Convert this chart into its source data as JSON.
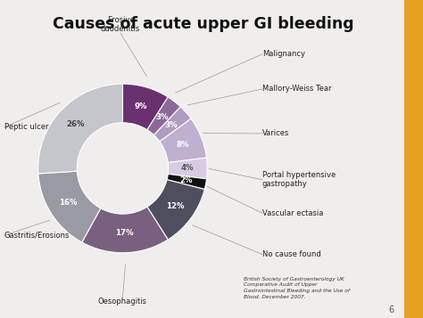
{
  "title": "Causes of acute upper GI bleeding",
  "background_color": "#f0eeec",
  "slices": [
    {
      "label": "Erosive\nduodenitis",
      "value": 9,
      "color": "#6b3070",
      "pct_label": "9%",
      "pct_color": "white"
    },
    {
      "label": "Malignancy",
      "value": 3,
      "color": "#8c6898",
      "pct_label": "3%",
      "pct_color": "white"
    },
    {
      "label": "Mallory-Weiss Tear",
      "value": 3,
      "color": "#b09cc0",
      "pct_label": "3%",
      "pct_color": "white"
    },
    {
      "label": "Varices",
      "value": 8,
      "color": "#c0b0d0",
      "pct_label": "8%",
      "pct_color": "white"
    },
    {
      "label": "Portal hypertensive\ngastropathy",
      "value": 4,
      "color": "#d8cce4",
      "pct_label": "4%",
      "pct_color": "#555555"
    },
    {
      "label": "Vascular ectasia",
      "value": 2,
      "color": "#111111",
      "pct_label": "2%",
      "pct_color": "white"
    },
    {
      "label": "No cause found",
      "value": 12,
      "color": "#4e4e5e",
      "pct_label": "12%",
      "pct_color": "white"
    },
    {
      "label": "Oesophagitis",
      "value": 17,
      "color": "#7a6080",
      "pct_label": "17%",
      "pct_color": "white"
    },
    {
      "label": "Gastritis/Erosions",
      "value": 16,
      "color": "#999aa4",
      "pct_label": "16%",
      "pct_color": "white"
    },
    {
      "label": "Peptic ulcer",
      "value": 26,
      "color": "#c5c5cc",
      "pct_label": "26%",
      "pct_color": "#444444"
    }
  ],
  "footnote": "British Society of Gastroenterology UK\nComparative Audit of Upper\nGastrointestinal Bleeding and the Use of\nBlood. December 2007.",
  "page_number": "6",
  "gold_bar_color": "#e8a020"
}
